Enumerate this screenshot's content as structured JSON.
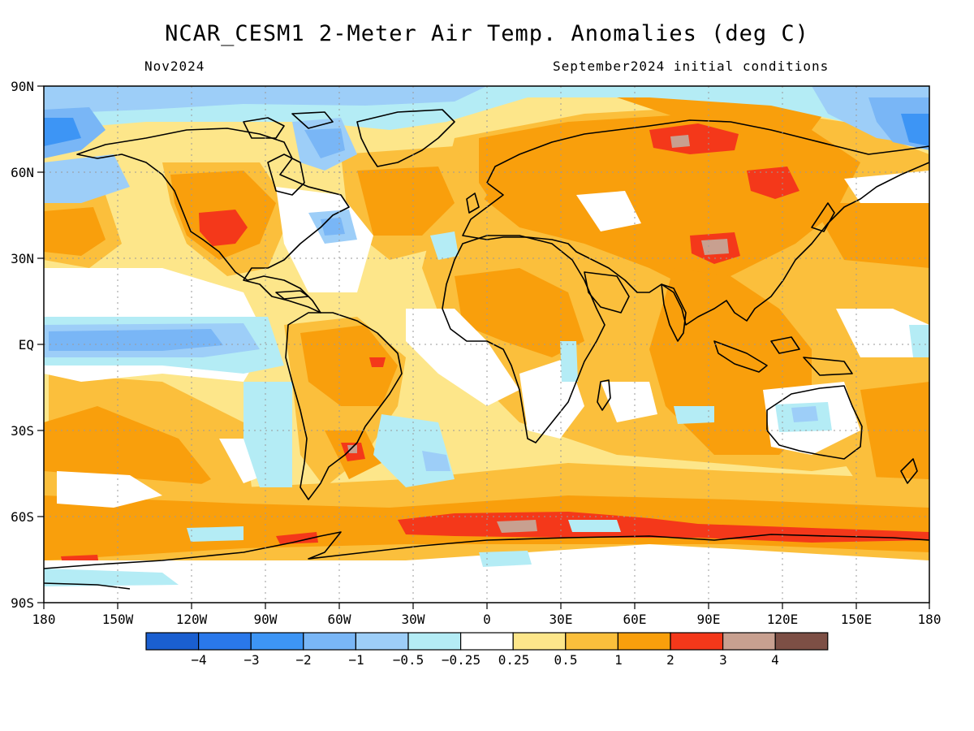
{
  "title": "NCAR_CESM1 2-Meter Air Temp. Anomalies (deg C)",
  "subtitle_left": "Nov2024",
  "subtitle_right": "September2024 initial conditions",
  "lat_labels": [
    "90N",
    "60N",
    "30N",
    "EQ",
    "30S",
    "60S",
    "90S"
  ],
  "lon_labels": [
    "180",
    "150W",
    "120W",
    "90W",
    "60W",
    "30W",
    "0",
    "30E",
    "60E",
    "90E",
    "120E",
    "150E",
    "180"
  ],
  "colorbar": {
    "colors": [
      "#1a5fd0",
      "#2a78ea",
      "#3d95f5",
      "#79b6f6",
      "#9dcef8",
      "#b4ecf5",
      "#ffffff",
      "#fde68a",
      "#fbbf3c",
      "#f99f0c",
      "#f4381a",
      "#c8a090",
      "#7d4f45"
    ],
    "labels": [
      "−4",
      "−3",
      "−2",
      "−1",
      "−0.5",
      "−0.25",
      "0.25",
      "0.5",
      "1",
      "2",
      "3",
      "4"
    ]
  },
  "colors": {
    "ocean_default": "#fde68a",
    "land_outline": "#000000",
    "grid": "#9a9a9a"
  }
}
